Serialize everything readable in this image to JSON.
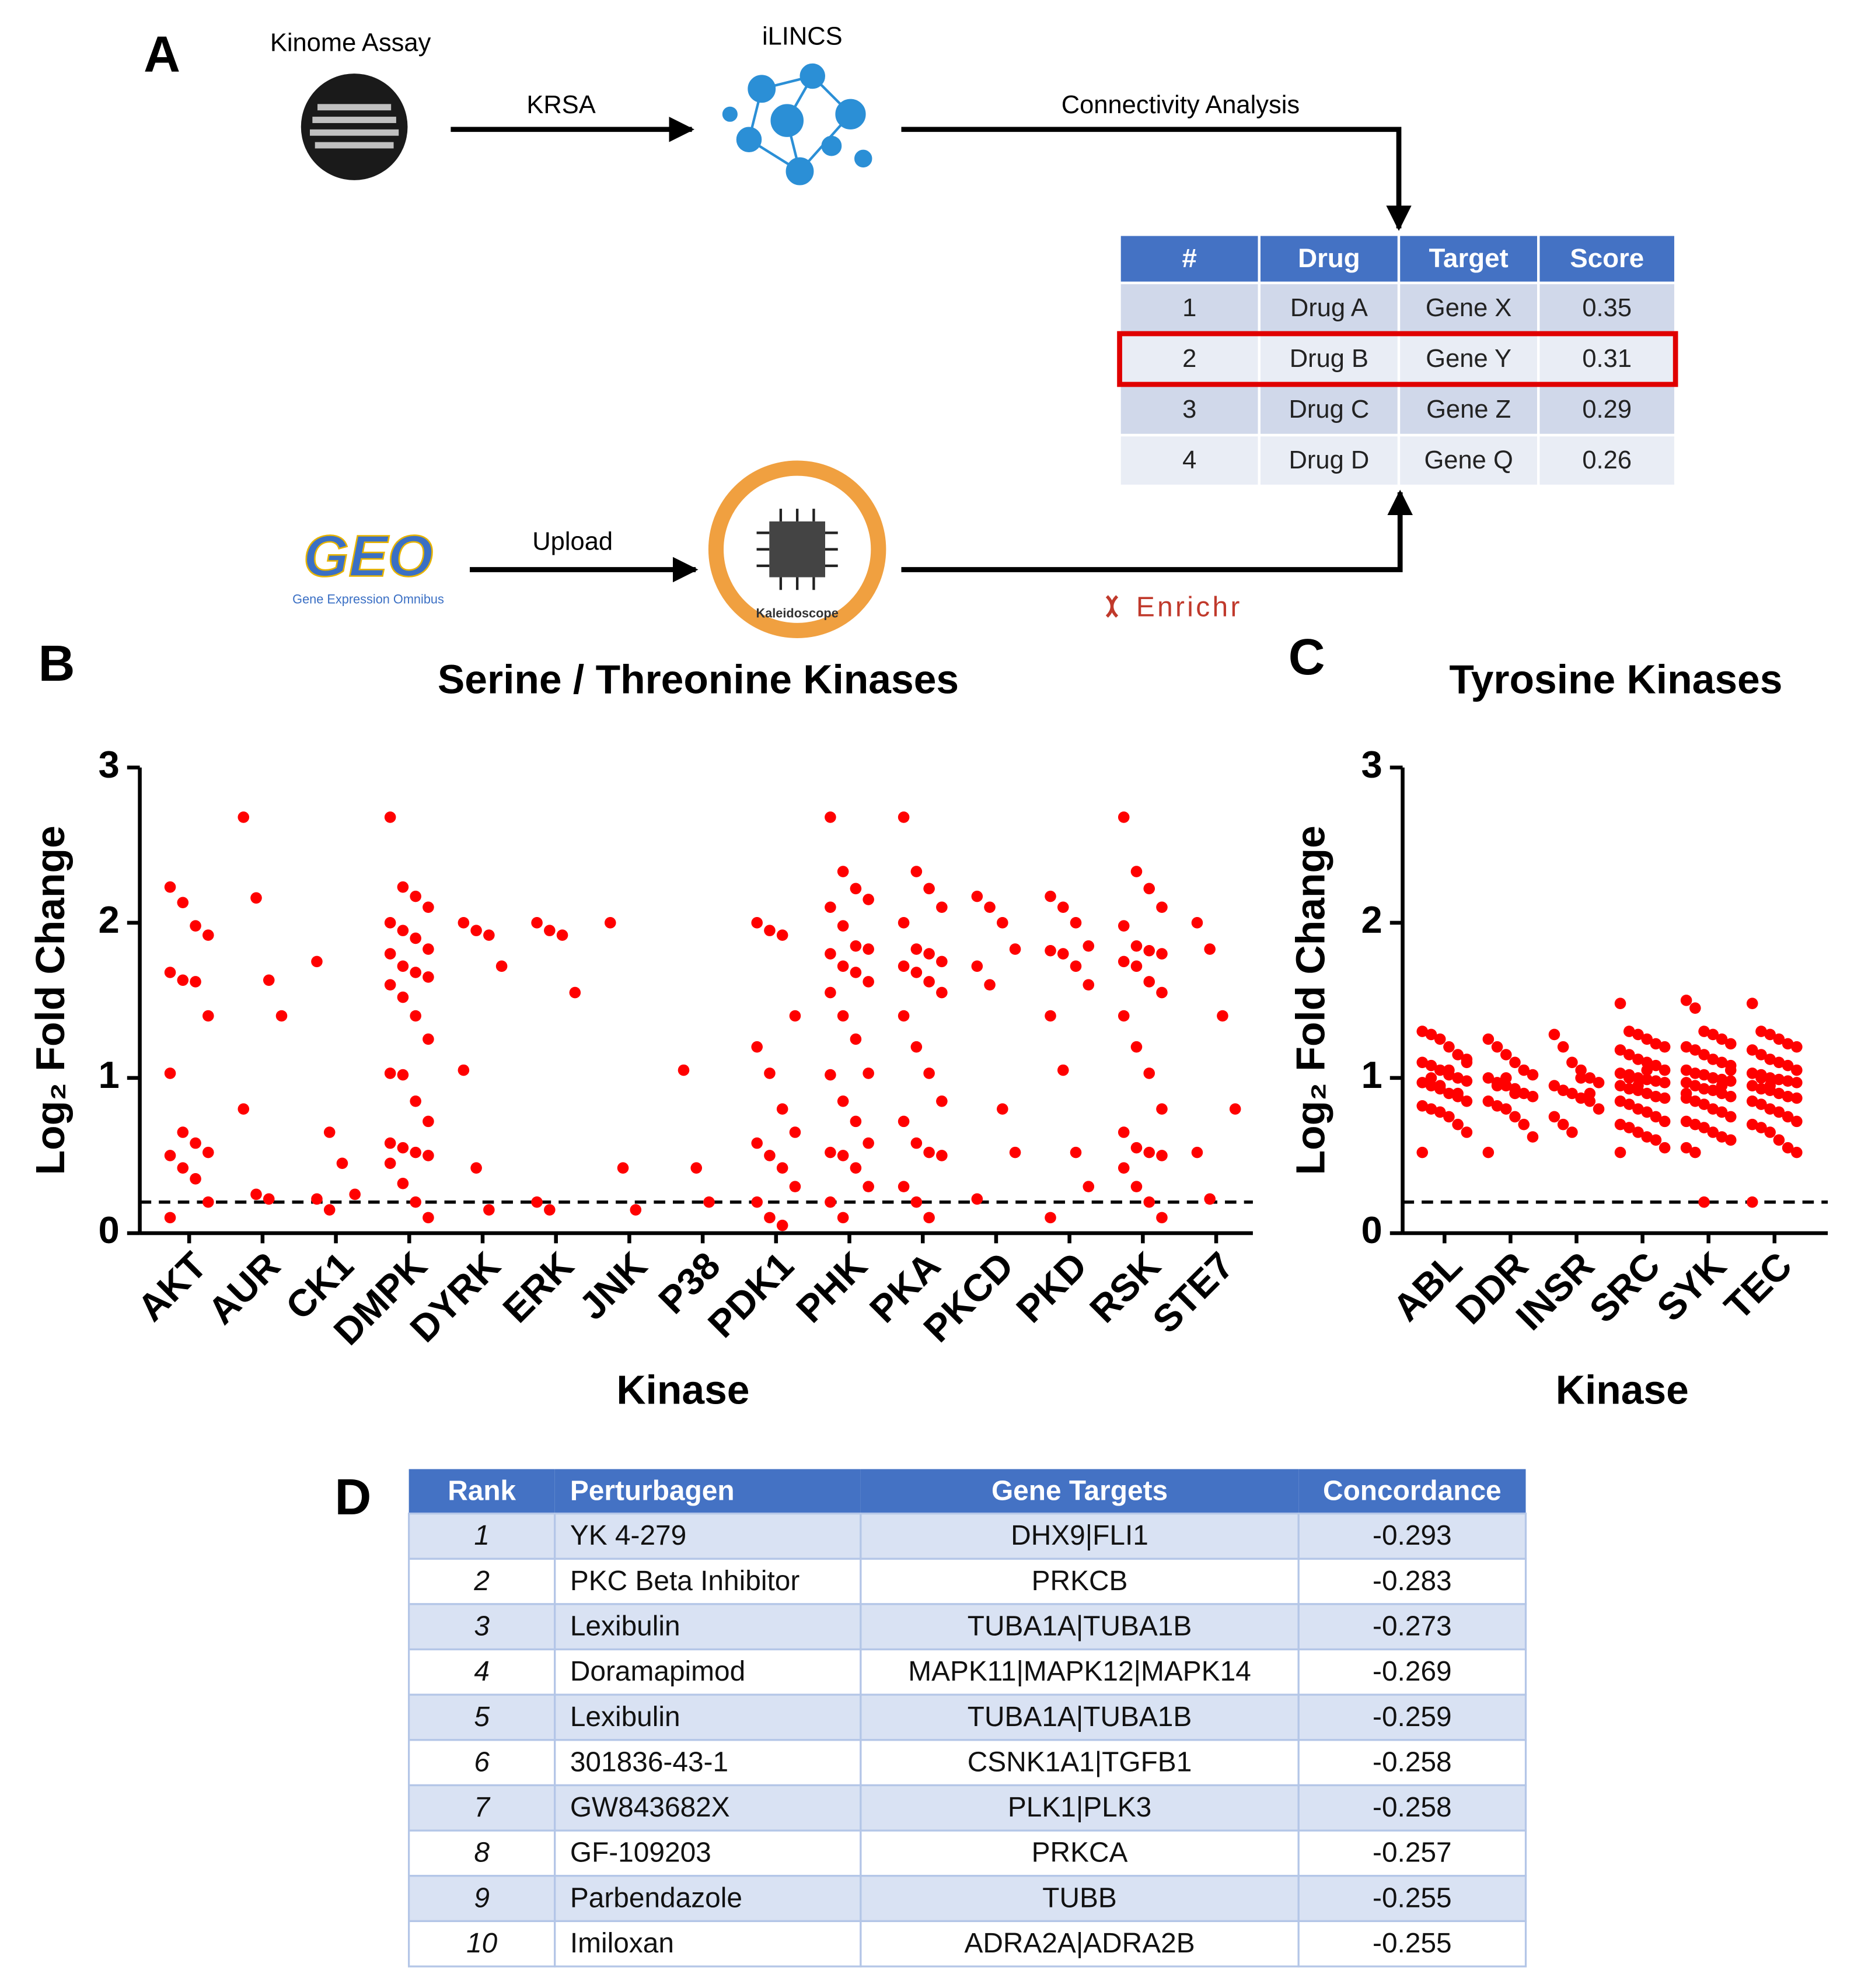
{
  "diagram": {
    "panel_label": "A",
    "nodes": [
      {
        "label": "Kinome Assay"
      },
      {
        "label": "iLINCS"
      },
      {
        "label": "GEO",
        "caption": "Gene Expression Omnibus"
      },
      {
        "label": "Kaleidoscope"
      }
    ],
    "edges": [
      {
        "label": "KRSA"
      },
      {
        "label": "Connectivity Analysis"
      },
      {
        "label": "Upload"
      },
      {
        "label": "Enrichr"
      }
    ]
  },
  "table_a": {
    "header": [
      "#",
      "Drug",
      "Target",
      "Score"
    ],
    "rows": [
      [
        1,
        "Drug A",
        "Gene X",
        0.35
      ],
      [
        2,
        "Drug B",
        "Gene Y",
        0.31
      ],
      [
        3,
        "Drug C",
        "Gene Z",
        0.29
      ],
      [
        4,
        "Drug D",
        "Gene Q",
        0.26
      ]
    ],
    "highlight_row": 1
  },
  "chart_data": [
    {
      "type": "strip",
      "panel_label": "B",
      "title": "Serine / Threonine Kinases",
      "xlabel": "Kinase",
      "ylabel": "Log₂ Fold Change",
      "color": "#ff0000",
      "ylim": [
        0,
        3
      ],
      "yticks": [
        0,
        1,
        2,
        3
      ],
      "threshold": 0.2,
      "categories": [
        "AKT",
        "AUR",
        "CK1",
        "DMPK",
        "DYRK",
        "ERK",
        "JNK",
        "P38",
        "PDK1",
        "PHK",
        "PKA",
        "PKCD",
        "PKD",
        "RSK",
        "STE7"
      ],
      "values": [
        [
          2.23,
          2.13,
          1.98,
          1.92,
          1.68,
          1.63,
          1.62,
          1.4,
          1.03,
          0.65,
          0.58,
          0.52,
          0.5,
          0.42,
          0.35,
          0.2,
          0.1
        ],
        [
          2.68,
          2.16,
          1.63,
          1.4,
          0.8,
          0.25,
          0.22
        ],
        [
          1.75,
          0.65,
          0.45,
          0.25,
          0.22,
          0.15
        ],
        [
          2.68,
          2.23,
          2.17,
          2.1,
          2.0,
          1.95,
          1.9,
          1.83,
          1.8,
          1.72,
          1.68,
          1.65,
          1.6,
          1.52,
          1.4,
          1.25,
          1.03,
          1.02,
          0.85,
          0.72,
          0.58,
          0.55,
          0.52,
          0.5,
          0.45,
          0.32,
          0.2,
          0.1
        ],
        [
          2.0,
          1.95,
          1.92,
          1.72,
          1.05,
          0.42,
          0.15
        ],
        [
          2.0,
          1.95,
          1.92,
          1.55,
          0.2,
          0.15
        ],
        [
          2.0,
          0.42,
          0.15
        ],
        [
          1.05,
          0.42,
          0.2
        ],
        [
          2.0,
          1.95,
          1.92,
          1.4,
          1.2,
          1.03,
          0.8,
          0.65,
          0.58,
          0.5,
          0.42,
          0.3,
          0.2,
          0.1,
          0.05
        ],
        [
          2.68,
          2.33,
          2.22,
          2.15,
          2.1,
          1.98,
          1.85,
          1.83,
          1.8,
          1.72,
          1.68,
          1.62,
          1.55,
          1.4,
          1.25,
          1.03,
          1.02,
          0.85,
          0.72,
          0.58,
          0.52,
          0.5,
          0.42,
          0.3,
          0.2,
          0.1
        ],
        [
          2.68,
          2.33,
          2.22,
          2.1,
          2.0,
          1.83,
          1.8,
          1.75,
          1.72,
          1.68,
          1.62,
          1.55,
          1.4,
          1.2,
          1.03,
          0.85,
          0.72,
          0.58,
          0.52,
          0.5,
          0.3,
          0.2,
          0.1
        ],
        [
          2.17,
          2.1,
          2.0,
          1.83,
          1.72,
          1.6,
          0.8,
          0.52,
          0.22
        ],
        [
          2.17,
          2.1,
          2.0,
          1.85,
          1.82,
          1.8,
          1.72,
          1.6,
          1.4,
          1.05,
          0.52,
          0.3,
          0.1
        ],
        [
          2.68,
          2.33,
          2.22,
          2.1,
          1.98,
          1.85,
          1.82,
          1.8,
          1.75,
          1.72,
          1.62,
          1.55,
          1.4,
          1.2,
          1.03,
          0.8,
          0.65,
          0.55,
          0.52,
          0.5,
          0.42,
          0.3,
          0.2,
          0.1
        ],
        [
          2.0,
          1.83,
          1.4,
          0.8,
          0.52,
          0.22
        ]
      ]
    },
    {
      "type": "strip",
      "panel_label": "C",
      "title": "Tyrosine Kinases",
      "xlabel": "Kinase",
      "ylabel": "Log₂ Fold Change",
      "color": "#ff0000",
      "ylim": [
        0,
        3
      ],
      "yticks": [
        0,
        1,
        2,
        3
      ],
      "threshold": 0.2,
      "categories": [
        "ABL",
        "DDR",
        "INSR",
        "SRC",
        "SYK",
        "TEC"
      ],
      "values": [
        [
          1.3,
          1.28,
          1.25,
          1.2,
          1.15,
          1.12,
          1.1,
          1.08,
          1.05,
          1.02,
          1.0,
          0.98,
          0.97,
          0.95,
          0.93,
          0.9,
          0.88,
          0.85,
          0.82,
          0.8,
          0.78,
          0.75,
          0.7,
          0.65,
          0.52,
          1.0,
          0.95,
          1.05,
          0.9,
          1.1
        ],
        [
          1.25,
          1.2,
          1.15,
          1.1,
          1.05,
          1.02,
          1.0,
          0.97,
          0.95,
          0.93,
          0.9,
          0.88,
          0.85,
          0.82,
          0.8,
          0.75,
          0.7,
          0.62,
          0.52,
          0.95,
          1.0,
          0.9
        ],
        [
          1.28,
          1.2,
          1.1,
          1.05,
          1.0,
          0.97,
          0.95,
          0.92,
          0.9,
          0.87,
          0.85,
          0.8,
          0.75,
          0.7,
          0.65,
          1.0,
          0.9
        ],
        [
          1.48,
          1.3,
          1.28,
          1.25,
          1.22,
          1.2,
          1.18,
          1.15,
          1.12,
          1.1,
          1.08,
          1.05,
          1.03,
          1.02,
          1.0,
          0.99,
          0.98,
          0.97,
          0.95,
          0.93,
          0.92,
          0.9,
          0.88,
          0.87,
          0.85,
          0.83,
          0.8,
          0.78,
          0.75,
          0.72,
          0.7,
          0.68,
          0.65,
          0.62,
          0.6,
          0.55,
          0.52,
          1.0,
          0.95,
          1.05
        ],
        [
          1.5,
          1.45,
          1.3,
          1.28,
          1.25,
          1.22,
          1.2,
          1.18,
          1.15,
          1.12,
          1.1,
          1.08,
          1.05,
          1.03,
          1.02,
          1.0,
          0.99,
          0.98,
          0.97,
          0.95,
          0.93,
          0.92,
          0.9,
          0.88,
          0.87,
          0.85,
          0.83,
          0.8,
          0.78,
          0.75,
          0.72,
          0.7,
          0.68,
          0.65,
          0.62,
          0.6,
          0.55,
          0.52,
          0.2,
          1.0,
          0.95,
          1.05,
          0.9
        ],
        [
          1.48,
          1.3,
          1.28,
          1.25,
          1.22,
          1.2,
          1.18,
          1.15,
          1.12,
          1.1,
          1.08,
          1.05,
          1.03,
          1.02,
          1.0,
          0.99,
          0.98,
          0.97,
          0.95,
          0.93,
          0.92,
          0.9,
          0.88,
          0.87,
          0.85,
          0.83,
          0.8,
          0.78,
          0.75,
          0.72,
          0.7,
          0.68,
          0.65,
          0.6,
          0.55,
          0.52,
          0.2,
          1.0,
          0.95
        ]
      ]
    }
  ],
  "table_d": {
    "panel_label": "D",
    "header": [
      "Rank",
      "Perturbagen",
      "Gene Targets",
      "Concordance"
    ],
    "rows": [
      [
        1,
        "YK 4-279",
        "DHX9|FLI1",
        -0.293
      ],
      [
        2,
        "PKC Beta Inhibitor",
        "PRKCB",
        -0.283
      ],
      [
        3,
        "Lexibulin",
        "TUBA1A|TUBA1B",
        -0.273
      ],
      [
        4,
        "Doramapimod",
        "MAPK11|MAPK12|MAPK14",
        -0.269
      ],
      [
        5,
        "Lexibulin",
        "TUBA1A|TUBA1B",
        -0.259
      ],
      [
        6,
        "301836-43-1",
        "CSNK1A1|TGFB1",
        -0.258
      ],
      [
        7,
        "GW843682X",
        "PLK1|PLK3",
        -0.258
      ],
      [
        8,
        "GF-109203",
        "PRKCA",
        -0.257
      ],
      [
        9,
        "Parbendazole",
        "TUBB",
        -0.255
      ],
      [
        10,
        "Imiloxan",
        "ADRA2A|ADRA2B",
        -0.255
      ]
    ]
  }
}
